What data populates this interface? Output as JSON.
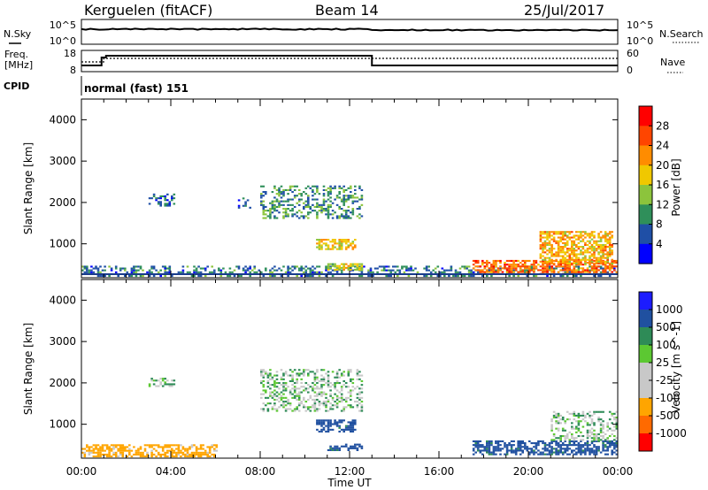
{
  "header": {
    "station": "Kerguelen (fitACF)",
    "beam": "Beam 14",
    "date": "25/Jul/2017"
  },
  "panels": {
    "nsky": {
      "left_label": "N.Sky",
      "right_label": "N.Search",
      "left_ticks": [
        "10^5",
        "10^0"
      ],
      "right_ticks": [
        "10^5",
        "10^0"
      ]
    },
    "freq": {
      "left_label_1": "Freq.",
      "left_label_2": "[MHz]",
      "right_label": "Nave",
      "left_ticks": [
        "18",
        "8"
      ],
      "right_ticks": [
        "60",
        "0"
      ]
    },
    "cpid": {
      "label": "CPID",
      "text": "normal (fast) 151"
    }
  },
  "colors": {
    "power_scale": [
      "#0000ff",
      "#1f4fa6",
      "#2f8f5a",
      "#8cc43c",
      "#f0c800",
      "#ff8c00",
      "#ff4500",
      "#ff0000"
    ],
    "velocity_scale": [
      "#ff0000",
      "#ff6a00",
      "#ffa500",
      "#c8c8c8",
      "#c8c8c8",
      "#5cc832",
      "#2e8b57",
      "#2050a0",
      "#1c1cff"
    ],
    "ground_scatter": "#bebebe"
  },
  "chart_data": [
    {
      "type": "heatmap",
      "title": "",
      "xlabel": "",
      "ylabel": "Slant Range [km]",
      "xlim": [
        "00:00",
        "00:00"
      ],
      "ylim": [
        180,
        4500
      ],
      "x_ticks": [
        "00:00",
        "04:00",
        "08:00",
        "12:00",
        "16:00",
        "20:00",
        "00:00"
      ],
      "y_ticks": [
        1000,
        2000,
        3000,
        4000
      ],
      "colorbar": {
        "label": "Power [dB]",
        "ticks": [
          "4",
          "8",
          "12",
          "16",
          "20",
          "24",
          "28"
        ],
        "range": [
          0,
          30
        ]
      },
      "echo_regions": [
        {
          "t": [
            0.0,
            24.0
          ],
          "r": [
            200,
            450
          ],
          "value": 8
        },
        {
          "t": [
            3.0,
            4.2
          ],
          "r": [
            1900,
            2200
          ],
          "value": 6
        },
        {
          "t": [
            7.0,
            7.5
          ],
          "r": [
            1850,
            2100
          ],
          "value": 8
        },
        {
          "t": [
            8.0,
            12.5
          ],
          "r": [
            1600,
            2400
          ],
          "value": 10
        },
        {
          "t": [
            10.5,
            12.2
          ],
          "r": [
            850,
            1100
          ],
          "value": 18
        },
        {
          "t": [
            11.0,
            12.5
          ],
          "r": [
            350,
            500
          ],
          "value": 16
        },
        {
          "t": [
            17.5,
            24.0
          ],
          "r": [
            250,
            600
          ],
          "value": 24
        },
        {
          "t": [
            20.5,
            23.8
          ],
          "r": [
            500,
            1300
          ],
          "value": 20
        }
      ]
    },
    {
      "type": "heatmap",
      "title": "",
      "xlabel": "Time UT",
      "ylabel": "Slant Range [km]",
      "xlim": [
        "00:00",
        "00:00"
      ],
      "ylim": [
        180,
        4500
      ],
      "x_ticks": [
        "00:00",
        "04:00",
        "08:00",
        "12:00",
        "16:00",
        "20:00",
        "00:00"
      ],
      "y_ticks": [
        1000,
        2000,
        3000,
        4000
      ],
      "colorbar": {
        "label": "Velocity [m s^-1]",
        "ticks": [
          "1000",
          "500",
          "100",
          "25",
          "-25",
          "-100",
          "-500",
          "-1000"
        ],
        "range": [
          -1500,
          1500
        ]
      },
      "echo_regions": [
        {
          "t": [
            0.0,
            6.0
          ],
          "r": [
            200,
            500
          ],
          "value": -150
        },
        {
          "t": [
            3.0,
            4.2
          ],
          "r": [
            1900,
            2100
          ],
          "value": 0
        },
        {
          "t": [
            8.0,
            12.5
          ],
          "r": [
            1300,
            2300
          ],
          "value": 0
        },
        {
          "t": [
            10.5,
            12.2
          ],
          "r": [
            800,
            1100
          ],
          "value": 150
        },
        {
          "t": [
            11.0,
            12.5
          ],
          "r": [
            350,
            500
          ],
          "value": 150
        },
        {
          "t": [
            17.5,
            24.0
          ],
          "r": [
            250,
            600
          ],
          "value": 150
        },
        {
          "t": [
            21.0,
            24.0
          ],
          "r": [
            600,
            1300
          ],
          "value": 0
        }
      ]
    }
  ]
}
